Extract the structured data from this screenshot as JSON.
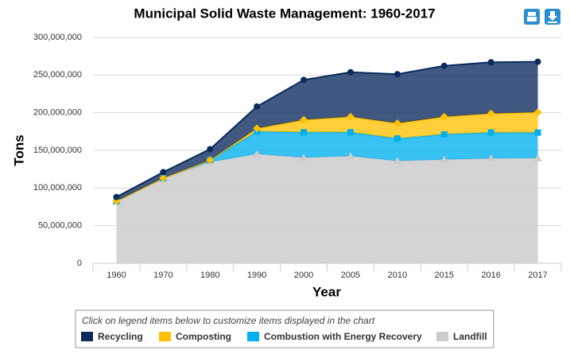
{
  "chart_data": {
    "type": "stacked-area",
    "title": "Municipal Solid Waste Management: 1960-2017",
    "y_label": "Tons",
    "x_label": "Year",
    "legend_hint": "Click on legend items below to customize items displayed in the chart",
    "categories": [
      "1960",
      "1970",
      "1980",
      "1990",
      "2000",
      "2005",
      "2010",
      "2015",
      "2016",
      "2017"
    ],
    "series": [
      {
        "name": "Recycling",
        "color": "#0b2a5c",
        "marker": "circle",
        "values": [
          5600000,
          8000000,
          14500000,
          29000000,
          53000000,
          59200000,
          65300000,
          67600000,
          68100000,
          67000000
        ]
      },
      {
        "name": "Composting",
        "color": "#ffc000",
        "marker": "diamond",
        "values": [
          0,
          0,
          0,
          4200000,
          16500000,
          20600000,
          20200000,
          23400000,
          25200000,
          27000000
        ]
      },
      {
        "name": "Combustion with Energy Recovery",
        "color": "#00b0f0",
        "marker": "square",
        "values": [
          0,
          500000,
          2700000,
          29700000,
          33700000,
          31700000,
          29700000,
          33500000,
          34400000,
          34000000
        ]
      },
      {
        "name": "Landfill",
        "color": "#cccccc",
        "marker": "triangle",
        "values": [
          82500000,
          112600000,
          134400000,
          145300000,
          140300000,
          142300000,
          136000000,
          137700000,
          139300000,
          139600000
        ]
      }
    ],
    "ylim": [
      0,
      300000000
    ],
    "yticks": [
      0,
      {
        "value": 50000000,
        "label": "50,000,000"
      },
      {
        "value": 100000000,
        "label": "100,000,000"
      },
      {
        "value": 150000000,
        "label": "150,000,000"
      },
      {
        "value": 200000000,
        "label": "200,000,000"
      },
      {
        "value": 250000000,
        "label": "250,000,000"
      },
      {
        "value": 300000000,
        "label": "300,000,000"
      }
    ],
    "grid": true
  }
}
